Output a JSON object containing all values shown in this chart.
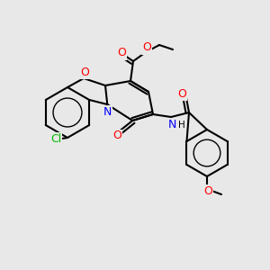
{
  "bg": "#e8e8e8",
  "bond_lw": 1.5,
  "atom_colors": {
    "O": "#ff0000",
    "N": "#0000ff",
    "Cl": "#00bb00",
    "C": "#000000"
  },
  "figsize": [
    3.0,
    3.0
  ],
  "dpi": 100
}
